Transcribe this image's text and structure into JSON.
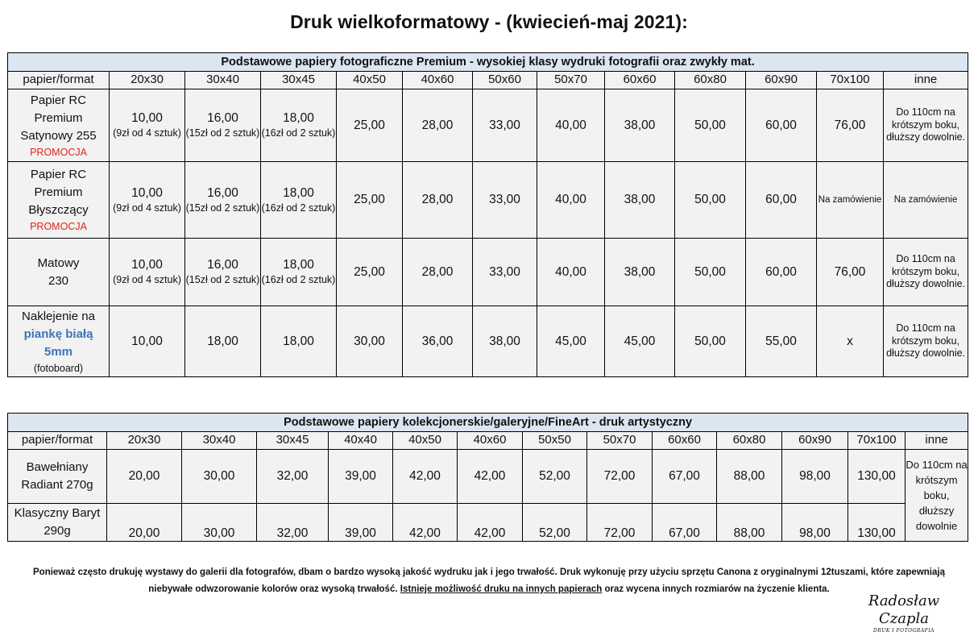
{
  "title": "Druk wielkoformatowy - (kwiecień-maj 2021):",
  "table1": {
    "caption": "Podstawowe papiery fotograficzne Premium - wysokiej klasy wydruki fotografii oraz zwykły mat.",
    "headers": [
      "papier/format",
      "20x30",
      "30x40",
      "30x45",
      "40x50",
      "40x60",
      "50x60",
      "50x70",
      "60x60",
      "60x80",
      "60x90",
      "70x100",
      "inne"
    ],
    "rows": [
      {
        "name_lines": [
          "Papier RC",
          "Premium",
          "Satynowy 255"
        ],
        "promo": "PROMOCJA",
        "c1": {
          "price": "10,00",
          "note": "(9zł od 4 sztuk)"
        },
        "c2": {
          "price": "16,00",
          "note": "(15zł od 2 sztuk)"
        },
        "c3": {
          "price": "18,00",
          "note": "(16zł od 2 sztuk)"
        },
        "prices": [
          "25,00",
          "28,00",
          "33,00",
          "40,00",
          "38,00",
          "50,00",
          "60,00",
          "76,00"
        ],
        "other": "Do 110cm na krótszym boku, dłuższy dowolnie."
      },
      {
        "name_lines": [
          "Papier RC",
          "Premium",
          "Błyszczący"
        ],
        "promo": "PROMOCJA",
        "c1": {
          "price": "10,00",
          "note": "(9zł od 4 sztuk)"
        },
        "c2": {
          "price": "16,00",
          "note": "(15zł od 2 sztuk)"
        },
        "c3": {
          "price": "18,00",
          "note": "(16zł od 2 sztuk)"
        },
        "prices": [
          "25,00",
          "28,00",
          "33,00",
          "40,00",
          "38,00",
          "50,00",
          "60,00",
          "Na zamówienie"
        ],
        "other": "Na zamówienie"
      },
      {
        "name_lines": [
          "Matowy",
          "230"
        ],
        "c1": {
          "price": "10,00",
          "note": "(9zł od 4 sztuk)"
        },
        "c2": {
          "price": "16,00",
          "note": "(15zł od 2 sztuk)"
        },
        "c3": {
          "price": "18,00",
          "note": "(16zł od 2 sztuk)"
        },
        "prices": [
          "25,00",
          "28,00",
          "33,00",
          "40,00",
          "38,00",
          "50,00",
          "60,00",
          "76,00"
        ],
        "other": "Do 110cm na krótszym boku, dłuższy dowolnie."
      },
      {
        "name_prefix": "Naklejenie na",
        "name_highlight": "piankę białą 5mm",
        "name_suffix": "(fotoboard)",
        "prices": [
          "10,00",
          "18,00",
          "18,00",
          "30,00",
          "36,00",
          "38,00",
          "45,00",
          "45,00",
          "50,00",
          "55,00",
          "x"
        ],
        "other": "Do 110cm na krótszym boku, dłuższy dowolnie."
      }
    ]
  },
  "table2": {
    "caption": "Podstawowe papiery kolekcjonerskie/galeryjne/FineArt - druk artystyczny",
    "headers": [
      "papier/format",
      "20x30",
      "30x40",
      "30x45",
      "40x40",
      "40x50",
      "40x60",
      "50x50",
      "50x70",
      "60x60",
      "60x80",
      "60x90",
      "70x100",
      "inne"
    ],
    "rows": [
      {
        "name": "Bawełniany Radiant 270g",
        "prices": [
          "20,00",
          "30,00",
          "32,00",
          "39,00",
          "42,00",
          "42,00",
          "52,00",
          "72,00",
          "67,00",
          "88,00",
          "98,00",
          "130,00"
        ]
      },
      {
        "name": "Klasyczny Baryt 290g",
        "prices": [
          "20,00",
          "30,00",
          "32,00",
          "39,00",
          "42,00",
          "42,00",
          "52,00",
          "72,00",
          "67,00",
          "88,00",
          "98,00",
          "130,00"
        ]
      }
    ],
    "other": "Do 110cm na krótszym boku, dłuższy dowolnie"
  },
  "footer": {
    "part1": "Ponieważ często drukuję wystawy do galerii dla fotografów, dbam o bardzo wysoką jakość wydruku jak i jego trwałość. Druk wykonuję przy użyciu sprzętu Canona z oryginalnymi 12tuszami, które zapewniają niebywałe odwzorowanie kolorów oraz wysoką trwałość.",
    "link": "Istnieje możliwość druku na innych papierach",
    "part2": "oraz wycena innych rozmiarów na życzenie klienta."
  },
  "signature": {
    "name": "Radosław Czapla",
    "subtitle": "DRUK I FOTOGRAFIA"
  }
}
